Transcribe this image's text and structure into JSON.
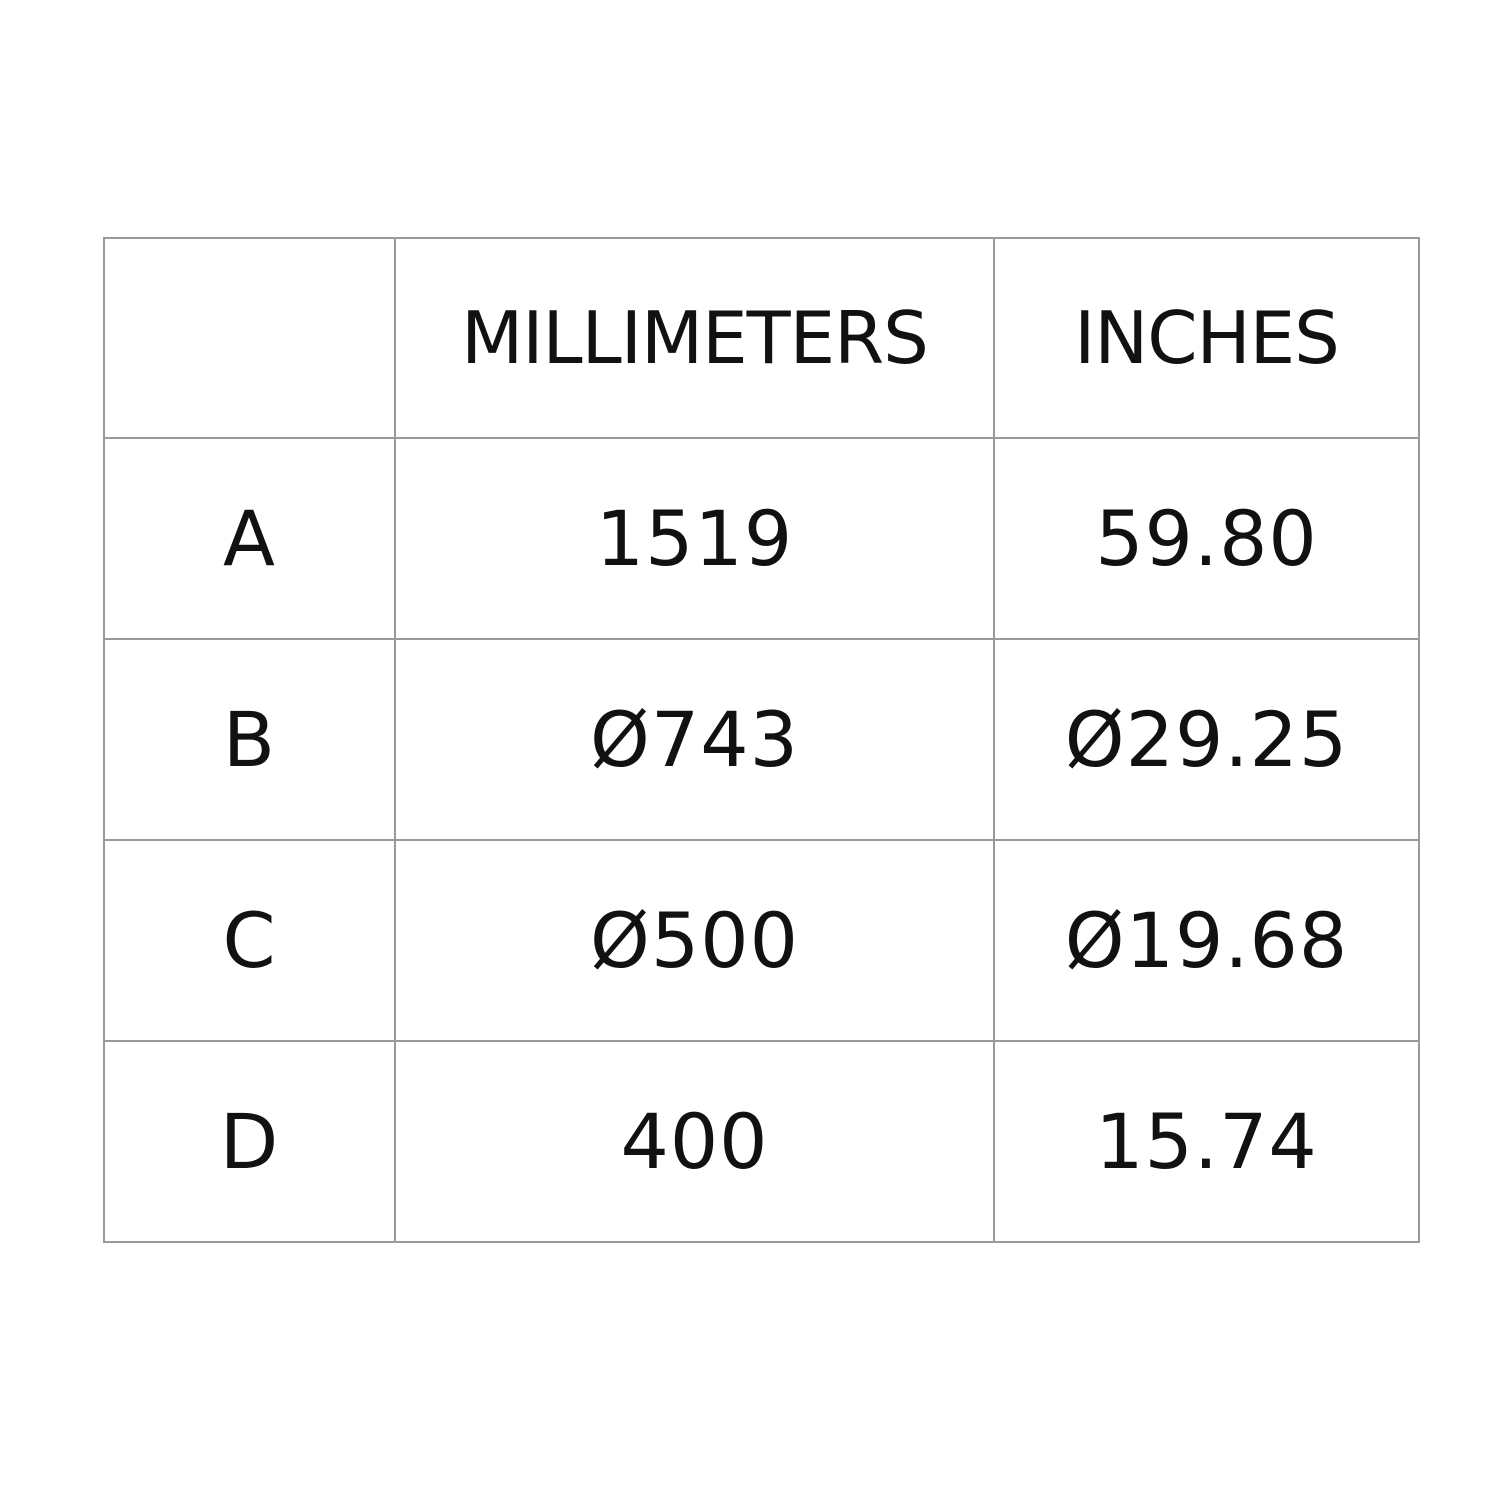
{
  "table": {
    "headers": [
      "",
      "MILLIMETERS",
      "INCHES"
    ],
    "rows": [
      {
        "label": "A",
        "mm": "1519",
        "in": "59.80"
      },
      {
        "label": "B",
        "mm": "Ø743",
        "in": "Ø29.25"
      },
      {
        "label": "C",
        "mm": "Ø500",
        "in": "Ø19.68"
      },
      {
        "label": "D",
        "mm": "400",
        "in": "15.74"
      }
    ]
  }
}
